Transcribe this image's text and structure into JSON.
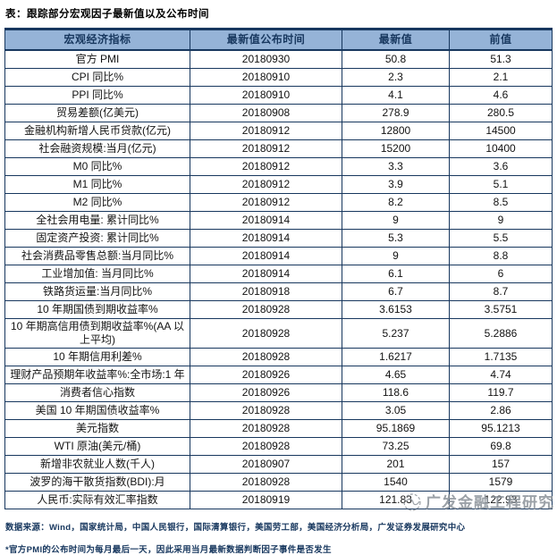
{
  "chart_data": {
    "type": "table",
    "title": "表：跟踪部分宏观因子最新值以及公布时间",
    "columns": [
      "宏观经济指标",
      "最新值公布时间",
      "最新值",
      "前值"
    ],
    "rows": [
      [
        "官方 PMI",
        "20180930",
        "50.8",
        "51.3"
      ],
      [
        "CPI 同比%",
        "20180910",
        "2.3",
        "2.1"
      ],
      [
        "PPI 同比%",
        "20180910",
        "4.1",
        "4.6"
      ],
      [
        "贸易差额(亿美元)",
        "20180908",
        "278.9",
        "280.5"
      ],
      [
        "金融机构新增人民币贷款(亿元)",
        "20180912",
        "12800",
        "14500"
      ],
      [
        "社会融资规模:当月(亿元)",
        "20180912",
        "15200",
        "10400"
      ],
      [
        "M0 同比%",
        "20180912",
        "3.3",
        "3.6"
      ],
      [
        "M1 同比%",
        "20180912",
        "3.9",
        "5.1"
      ],
      [
        "M2 同比%",
        "20180912",
        "8.2",
        "8.5"
      ],
      [
        "全社会用电量: 累计同比%",
        "20180914",
        "9",
        "9"
      ],
      [
        "固定资产投资: 累计同比%",
        "20180914",
        "5.3",
        "5.5"
      ],
      [
        "社会消费品零售总额:当月同比%",
        "20180914",
        "9",
        "8.8"
      ],
      [
        "工业增加值: 当月同比%",
        "20180914",
        "6.1",
        "6"
      ],
      [
        "铁路货运量:当月同比%",
        "20180918",
        "6.7",
        "8.7"
      ],
      [
        "10 年期国债到期收益率%",
        "20180928",
        "3.6153",
        "3.5751"
      ],
      [
        "10 年期高信用债到期收益率%(AA 以上平均)",
        "20180928",
        "5.237",
        "5.2886"
      ],
      [
        "10 年期信用利差%",
        "20180928",
        "1.6217",
        "1.7135"
      ],
      [
        "理财产品预期年收益率%:全市场:1 年",
        "20180926",
        "4.65",
        "4.74"
      ],
      [
        "消费者信心指数",
        "20180926",
        "118.6",
        "119.7"
      ],
      [
        "美国 10 年期国债收益率%",
        "20180928",
        "3.05",
        "2.86"
      ],
      [
        "美元指数",
        "20180928",
        "95.1869",
        "95.1213"
      ],
      [
        "WTI 原油(美元/桶)",
        "20180928",
        "73.25",
        "69.8"
      ],
      [
        "新增非农就业人数(千人)",
        "20180907",
        "201",
        "157"
      ],
      [
        "波罗的海干散货指数(BDI):月",
        "20180928",
        "1540",
        "1579"
      ],
      [
        "人民币:实际有效汇率指数",
        "20180919",
        "121.83",
        "122.93"
      ]
    ]
  },
  "footnotes": {
    "source": "数据来源：Wind，国家统计局，中国人民银行，国际清算银行，美国劳工部，美国经济分析局，广发证券发展研究中心",
    "note": "*官方PMI的公布时间为每月最后一天，因此采用当月最新数据判断因子事件是否发生"
  },
  "watermark": {
    "text": "广发金融工程研究"
  },
  "colors": {
    "header_bg": "#95B3D7",
    "header_text": "#17375E",
    "border": "#17375E",
    "footnote_text": "#17375E",
    "watermark_text": "#8E959C"
  }
}
